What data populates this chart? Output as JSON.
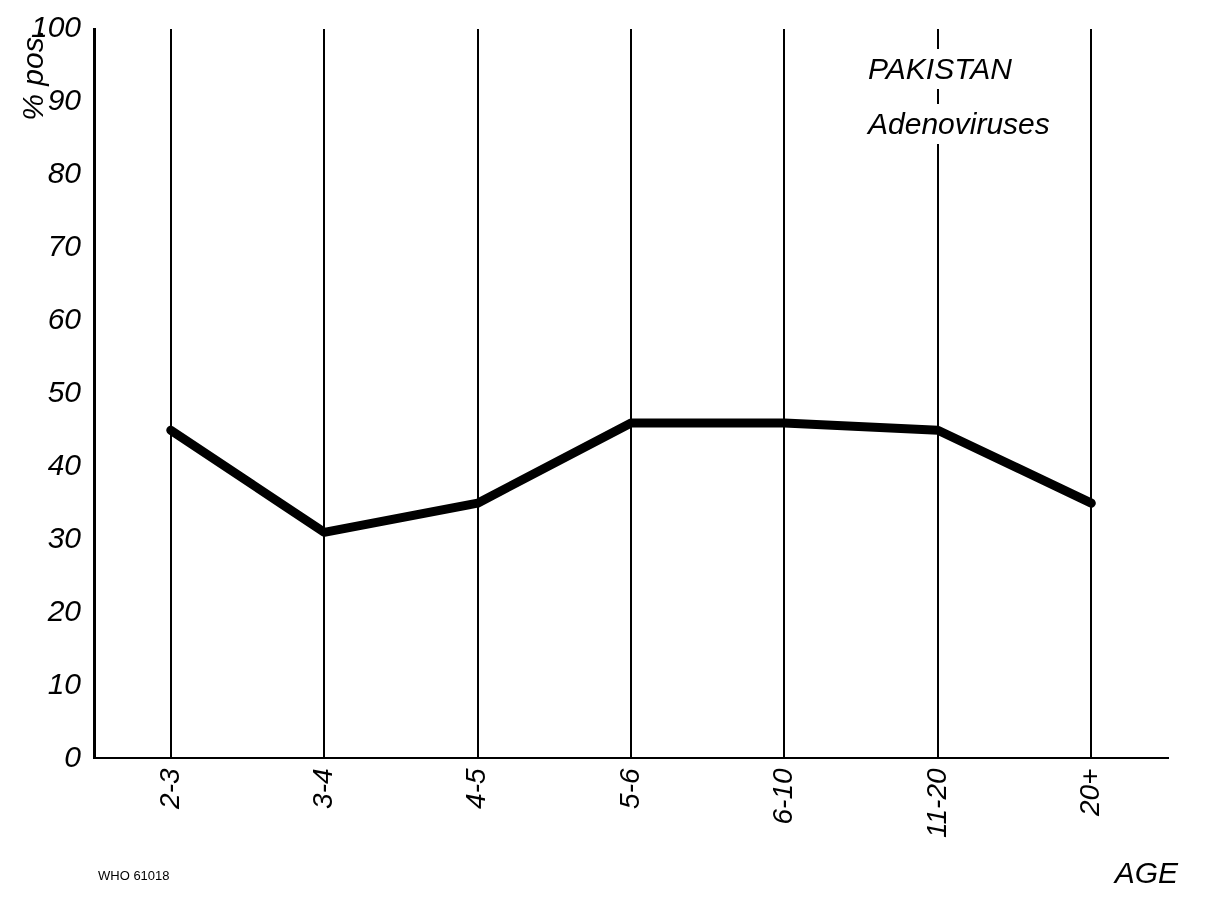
{
  "chart_data": {
    "type": "line",
    "title": "PAKISTAN",
    "subtitle": "Adenoviruses",
    "xlabel": "AGE",
    "ylabel": "% pos.",
    "categories": [
      "2-3",
      "3-4",
      "4-5",
      "5-6",
      "6-10",
      "11-20",
      "20+"
    ],
    "series": [
      {
        "color": "#000000",
        "values": [
          45,
          31,
          35,
          46,
          46,
          45,
          35
        ]
      }
    ],
    "ylim": [
      0,
      100
    ],
    "yticks": [
      0,
      10,
      20,
      30,
      40,
      50,
      60,
      70,
      80,
      90,
      100
    ],
    "grid": "x",
    "legend": false,
    "marker": "none",
    "line_style": "solid",
    "annotations": [
      "WHO 61018"
    ]
  }
}
